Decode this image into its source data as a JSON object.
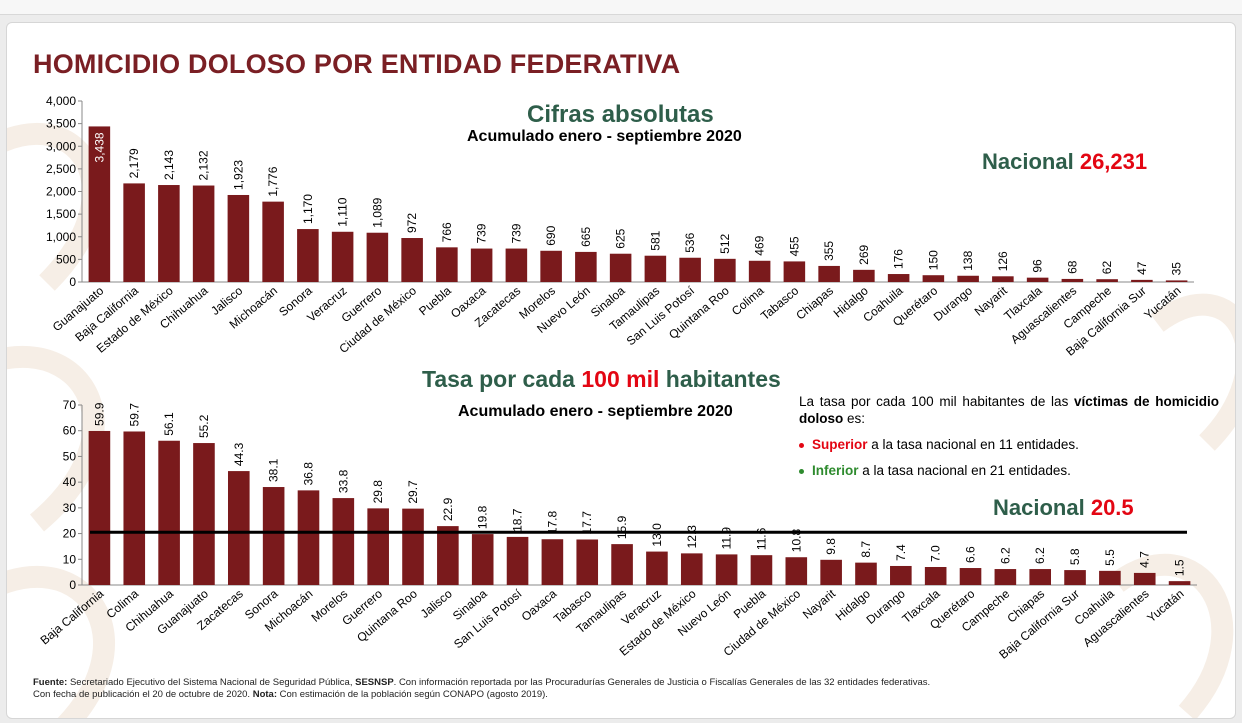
{
  "slide": {
    "title": "HOMICIDIO DOLOSO POR ENTIDAD FEDERATIVA",
    "chart1": {
      "title": "Cifras absolutas",
      "subtitle": "Acumulado enero - septiembre 2020",
      "national_label": "Nacional",
      "national_value": "26,231"
    },
    "chart2": {
      "title_pre": "Tasa por cada",
      "title_mid": "100 mil",
      "title_post": "habitantes",
      "subtitle": "Acumulado enero - septiembre 2020",
      "national_label": "Nacional",
      "national_value": "20.5",
      "note_pre": "La tasa por cada 100 mil habitantes de las",
      "note_bold": "víctimas de homicidio doloso",
      "note_post": "es:",
      "bullet1_key": "Superior",
      "bullet1_rest": "a la tasa nacional en 11 entidades.",
      "bullet2_key": "Inferior",
      "bullet2_rest": "a la tasa nacional en 21 entidades."
    },
    "footer": {
      "fuente_label": "Fuente:",
      "fuente_text": "Secretariado Ejecutivo del Sistema Nacional de Seguridad Pública,",
      "sesnsp": "SESNSP",
      "fuente_rest": ". Con información reportada por las Procuradurías Generales de Justicia o Fiscalías Generales de las 32 entidades federativas.",
      "fecha_text": "Con fecha de publicación el 20 de  octubre de 2020.",
      "nota_label": "Nota:",
      "nota_text": "Con estimación de la población según CONAPO (agosto 2019)."
    }
  },
  "colors": {
    "bar": "#7a1a1c",
    "title": "#7a1f24",
    "green": "#2e5e4a",
    "red": "#e30613",
    "green_dot": "#2e8b2e"
  },
  "chart_data": [
    {
      "type": "bar",
      "ylim": [
        0,
        4000
      ],
      "yticks": [
        "0",
        "500",
        "1,000",
        "1,500",
        "2,000",
        "2,500",
        "3,000",
        "3,500",
        "4,000"
      ],
      "categories": [
        "Guanajuato",
        "Baja California",
        "Estado de México",
        "Chihuahua",
        "Jalisco",
        "Michoacán",
        "Sonora",
        "Veracruz",
        "Guerrero",
        "Ciudad de México",
        "Puebla",
        "Oaxaca",
        "Zacatecas",
        "Morelos",
        "Nuevo León",
        "Sinaloa",
        "Tamaulipas",
        "San Luis Potosí",
        "Quintana Roo",
        "Colima",
        "Tabasco",
        "Chiapas",
        "Hidalgo",
        "Coahuila",
        "Querétaro",
        "Durango",
        "Nayarit",
        "Tlaxcala",
        "Aguascalientes",
        "Campeche",
        "Baja California Sur",
        "Yucatán"
      ],
      "values": [
        3438,
        2179,
        2143,
        2132,
        1923,
        1776,
        1170,
        1110,
        1089,
        972,
        766,
        739,
        739,
        690,
        665,
        625,
        581,
        536,
        512,
        469,
        455,
        355,
        269,
        176,
        150,
        138,
        126,
        96,
        68,
        62,
        47,
        35
      ],
      "labels": [
        "3,438",
        "2,179",
        "2,143",
        "2,132",
        "1,923",
        "1,776",
        "1,170",
        "1,110",
        "1,089",
        "972",
        "766",
        "739",
        "739",
        "690",
        "665",
        "625",
        "581",
        "536",
        "512",
        "469",
        "455",
        "355",
        "269",
        "176",
        "150",
        "138",
        "126",
        "96",
        "68",
        "62",
        "47",
        "35"
      ]
    },
    {
      "type": "bar",
      "ylim": [
        0,
        70
      ],
      "yticks": [
        "0",
        "10",
        "20",
        "30",
        "40",
        "50",
        "60",
        "70"
      ],
      "reference_line": 20.5,
      "categories": [
        "Baja California",
        "Colima",
        "Chihuahua",
        "Guanajuato",
        "Zacatecas",
        "Sonora",
        "Michoacán",
        "Morelos",
        "Guerrero",
        "Quintana Roo",
        "Jalisco",
        "Sinaloa",
        "San Luis Potosí",
        "Oaxaca",
        "Tabasco",
        "Tamaulipas",
        "Veracruz",
        "Estado de México",
        "Nuevo León",
        "Puebla",
        "Ciudad de México",
        "Nayarit",
        "Hidalgo",
        "Durango",
        "Tlaxcala",
        "Querétaro",
        "Campeche",
        "Chiapas",
        "Baja California Sur",
        "Coahuila",
        "Aguascalientes",
        "Yucatán"
      ],
      "values": [
        59.9,
        59.7,
        56.1,
        55.2,
        44.3,
        38.1,
        36.8,
        33.8,
        29.8,
        29.7,
        22.9,
        19.8,
        18.7,
        17.8,
        17.7,
        15.9,
        13.0,
        12.3,
        11.9,
        11.6,
        10.8,
        9.8,
        8.7,
        7.4,
        7.0,
        6.6,
        6.2,
        6.2,
        5.8,
        5.5,
        4.7,
        1.5
      ],
      "labels": [
        "59.9",
        "59.7",
        "56.1",
        "55.2",
        "44.3",
        "38.1",
        "36.8",
        "33.8",
        "29.8",
        "29.7",
        "22.9",
        "19.8",
        "18.7",
        "17.8",
        "17.7",
        "15.9",
        "13.0",
        "12.3",
        "11.9",
        "11.6",
        "10.8",
        "9.8",
        "8.7",
        "7.4",
        "7.0",
        "6.6",
        "6.2",
        "6.2",
        "5.8",
        "5.5",
        "4.7",
        "1.5"
      ]
    }
  ]
}
